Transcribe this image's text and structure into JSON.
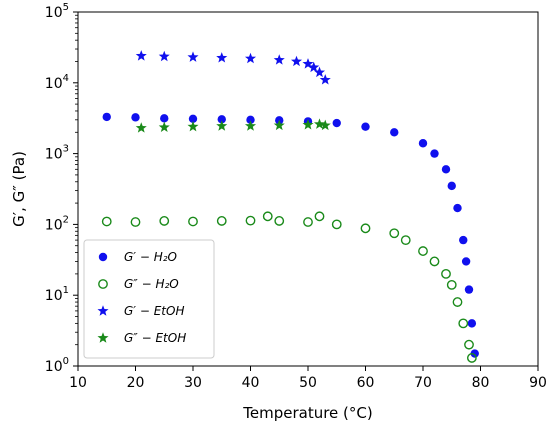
{
  "chart_data": {
    "type": "scatter",
    "xlabel": "Temperature (°C)",
    "ylabel": "G′, G″ (Pa)",
    "xlim": [
      10,
      90
    ],
    "ylim": [
      1,
      100000
    ],
    "yscale": "log",
    "x_ticks": [
      "10",
      "20",
      "30",
      "40",
      "50",
      "60",
      "70",
      "80",
      "90"
    ],
    "y_ticks": [
      {
        "base": "10",
        "exp": "0"
      },
      {
        "base": "10",
        "exp": "1"
      },
      {
        "base": "10",
        "exp": "2"
      },
      {
        "base": "10",
        "exp": "3"
      },
      {
        "base": "10",
        "exp": "4"
      },
      {
        "base": "10",
        "exp": "5"
      }
    ],
    "grid": false,
    "legend_position": "lower-left",
    "series": [
      {
        "name": "G′ − H₂O",
        "marker": "filled-circle",
        "color": "#1010ee",
        "x": [
          15,
          20,
          25,
          30,
          35,
          40,
          45,
          50,
          55,
          60,
          65,
          70,
          72,
          74,
          75,
          76,
          77,
          77.5,
          78,
          78.5,
          79
        ],
        "y": [
          3300,
          3250,
          3150,
          3100,
          3050,
          3000,
          2950,
          2850,
          2700,
          2400,
          2000,
          1400,
          1000,
          600,
          350,
          170,
          60,
          30,
          12,
          4,
          1.5
        ]
      },
      {
        "name": "G″ − H₂O",
        "marker": "open-circle",
        "color": "#1a8a1a",
        "x": [
          15,
          20,
          25,
          30,
          35,
          40,
          43,
          45,
          50,
          52,
          55,
          60,
          65,
          67,
          70,
          72,
          74,
          75,
          76,
          77,
          78,
          78.5
        ],
        "y": [
          110,
          108,
          112,
          110,
          112,
          113,
          130,
          112,
          108,
          130,
          100,
          88,
          75,
          60,
          42,
          30,
          20,
          14,
          8,
          4,
          2,
          1.3
        ]
      },
      {
        "name": "G′ − EtOH",
        "marker": "star",
        "color": "#1010ee",
        "x": [
          21,
          25,
          30,
          35,
          40,
          45,
          48,
          50,
          51,
          52,
          53
        ],
        "y": [
          24000,
          23500,
          23000,
          22500,
          22000,
          21000,
          20000,
          18500,
          16500,
          14000,
          11000
        ]
      },
      {
        "name": "G″ − EtOH",
        "marker": "star",
        "color": "#1a8a1a",
        "x": [
          21,
          25,
          30,
          35,
          40,
          45,
          50,
          52,
          53
        ],
        "y": [
          2300,
          2350,
          2400,
          2450,
          2450,
          2500,
          2550,
          2600,
          2500
        ]
      }
    ]
  }
}
